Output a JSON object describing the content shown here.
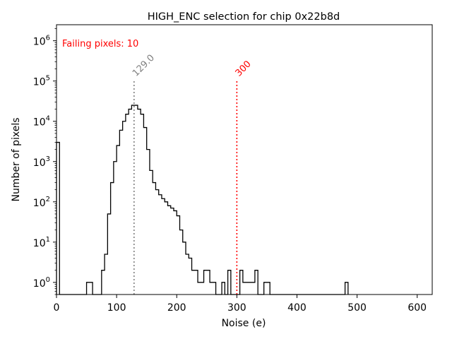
{
  "chart_data": {
    "type": "histogram",
    "title": "HIGH_ENC selection for chip 0x22b8d",
    "xlabel": "Noise (e)",
    "ylabel": "Number of pixels",
    "xlim": [
      0,
      625
    ],
    "ylim": [
      0.5,
      2500000
    ],
    "yscale": "log",
    "grid": false,
    "xticks": [
      0,
      100,
      200,
      300,
      400,
      500,
      600
    ],
    "xtick_labels": [
      "0",
      "100",
      "200",
      "300",
      "400",
      "500",
      "600"
    ],
    "yticks": [
      1,
      10,
      100,
      1000,
      10000,
      100000,
      1000000
    ],
    "ytick_labels": [
      {
        "base": "10",
        "exp": "0"
      },
      {
        "base": "10",
        "exp": "1"
      },
      {
        "base": "10",
        "exp": "2"
      },
      {
        "base": "10",
        "exp": "3"
      },
      {
        "base": "10",
        "exp": "4"
      },
      {
        "base": "10",
        "exp": "5"
      },
      {
        "base": "10",
        "exp": "6"
      }
    ],
    "series": [
      {
        "bin_edges": [
          0,
          5,
          10,
          15,
          20,
          25,
          30,
          35,
          40,
          45,
          50,
          55,
          60,
          65,
          70,
          75,
          80,
          85,
          90,
          95,
          100,
          105,
          110,
          115,
          120,
          125,
          130,
          135,
          140,
          145,
          150,
          155,
          160,
          165,
          170,
          175,
          180,
          185,
          190,
          195,
          200,
          205,
          210,
          215,
          220,
          225,
          230,
          235,
          240,
          245,
          250,
          255,
          260,
          265,
          270,
          275,
          280,
          285,
          290,
          295,
          300,
          305,
          310,
          315,
          320,
          325,
          330,
          335,
          340,
          345,
          350,
          355,
          360,
          365,
          370,
          375,
          380,
          385,
          390,
          395,
          400,
          405,
          410,
          415,
          420,
          425,
          430,
          435,
          440,
          445,
          450,
          455,
          460,
          465,
          470,
          475,
          480,
          485
        ],
        "counts": [
          3000,
          0,
          0,
          0,
          0,
          0,
          0,
          0,
          0,
          0,
          1,
          1,
          0,
          0,
          0,
          2,
          5,
          50,
          300,
          1000,
          2500,
          6000,
          10000,
          15000,
          20000,
          25000,
          25000,
          20000,
          15000,
          7000,
          2000,
          600,
          300,
          200,
          150,
          120,
          100,
          80,
          70,
          60,
          45,
          20,
          10,
          5,
          4,
          2,
          2,
          1,
          1,
          2,
          2,
          1,
          1,
          0,
          0,
          1,
          0,
          2,
          0,
          0,
          0,
          2,
          1,
          1,
          1,
          1,
          2,
          0,
          0,
          1,
          1,
          0,
          0,
          0,
          0,
          0,
          0,
          0,
          0,
          0,
          0,
          0,
          0,
          0,
          0,
          0,
          0,
          0,
          0,
          0,
          0,
          0,
          0,
          0,
          0,
          0,
          1
        ],
        "color": "#000000"
      }
    ],
    "annotations": [
      {
        "x": 129.0,
        "label": "129.0",
        "color": "#808080",
        "linestyle": "dotted",
        "y_top": 100000
      },
      {
        "x": 300,
        "label": "300",
        "color": "#ff0000",
        "linestyle": "dotted",
        "y_top": 100000
      },
      {
        "text": "Failing pixels: 10",
        "color": "#ff0000",
        "position": "top-left"
      }
    ]
  }
}
